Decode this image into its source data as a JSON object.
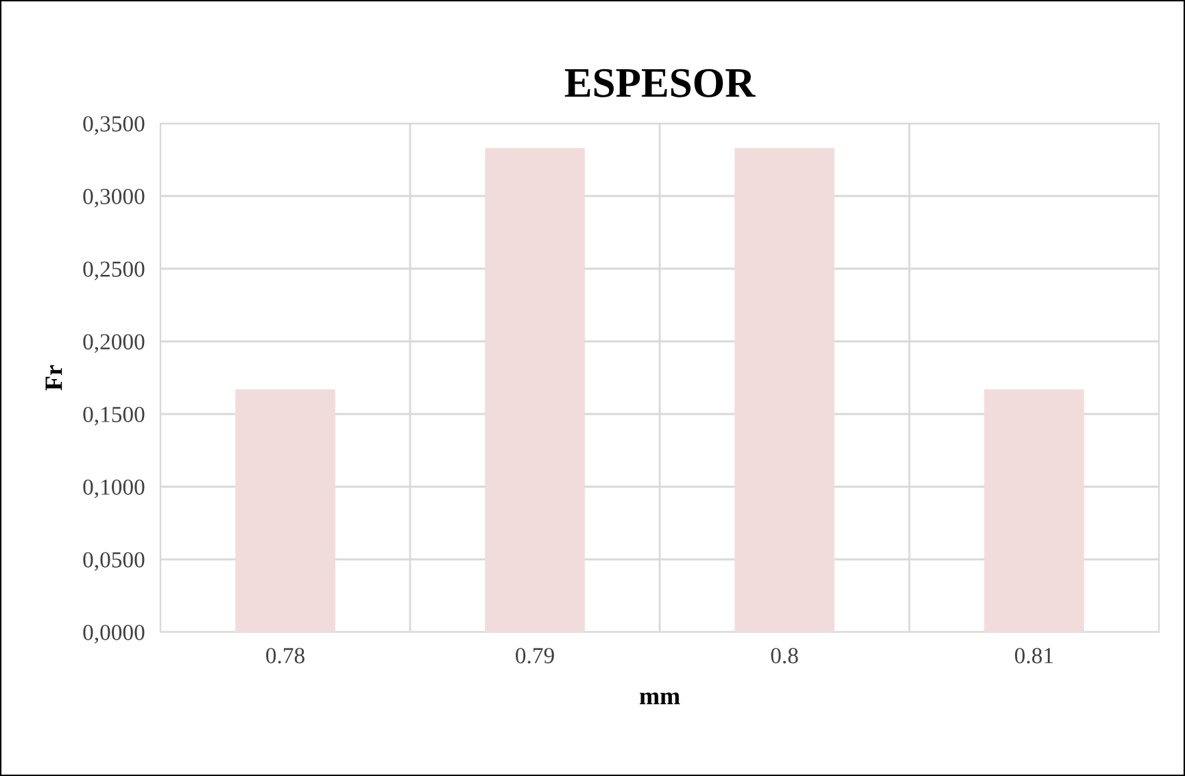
{
  "chart_data": {
    "type": "bar",
    "title": "ESPESOR",
    "xlabel": "mm",
    "ylabel": "Fr",
    "categories": [
      "0.78",
      "0.79",
      "0.8",
      "0.81"
    ],
    "values": [
      0.167,
      0.333,
      0.333,
      0.167
    ],
    "color": "#f2dcdb",
    "ylim": [
      0,
      0.35
    ],
    "yticks": [
      {
        "value": 0,
        "label": "0,0000"
      },
      {
        "value": 0.05,
        "label": "0,0500"
      },
      {
        "value": 0.1,
        "label": "0,1000"
      },
      {
        "value": 0.15,
        "label": "0,1500"
      },
      {
        "value": 0.2,
        "label": "0,2000"
      },
      {
        "value": 0.25,
        "label": "0,2500"
      },
      {
        "value": 0.3,
        "label": "0,3000"
      },
      {
        "value": 0.35,
        "label": "0,3500"
      }
    ],
    "grid": true
  }
}
